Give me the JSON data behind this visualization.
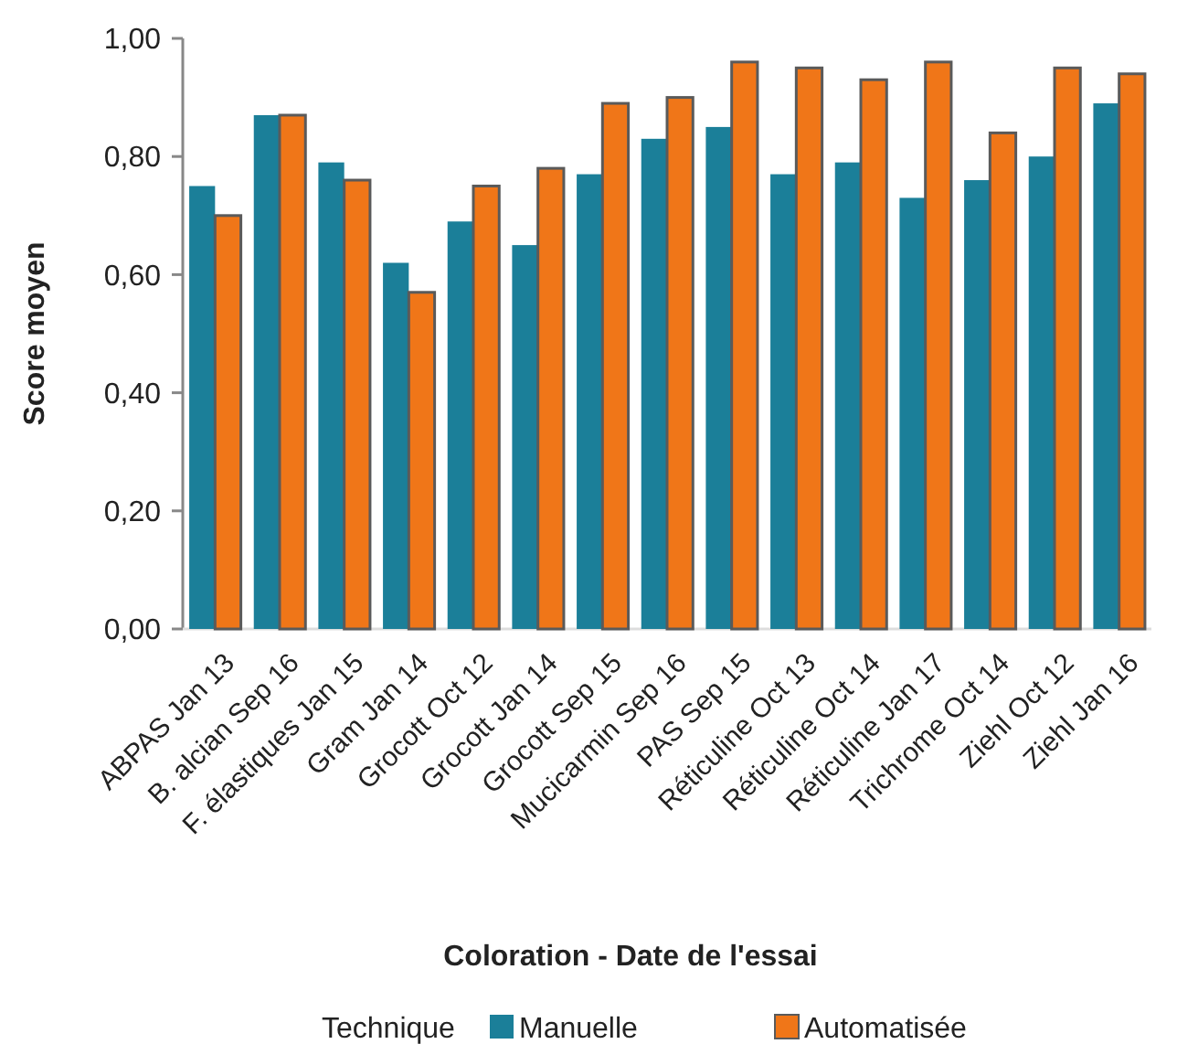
{
  "chart_data": {
    "type": "bar",
    "xlabel": "Coloration - Date de l'essai",
    "ylabel": "Score moyen",
    "legend_title": "Technique",
    "legend": "bottom",
    "grid": false,
    "categories": [
      "ABPAS Jan 13",
      "B. alcian Sep 16",
      "F. élastiques Jan 15",
      "Gram Jan 14",
      "Grocott Oct 12",
      "Grocott Jan 14",
      "Grocott Sep 15",
      "Mucicarmin Sep 16",
      "PAS Sep 15",
      "Réticuline Oct 13",
      "Réticuline Oct 14",
      "Réticuline Jan 17",
      "Trichrome Oct 14",
      "Ziehl Oct 12",
      "Ziehl Jan 16"
    ],
    "series": [
      {
        "name": "Manuelle",
        "color": "#1b7f99",
        "values": [
          0.75,
          0.87,
          0.79,
          0.62,
          0.69,
          0.65,
          0.77,
          0.83,
          0.85,
          0.77,
          0.79,
          0.73,
          0.76,
          0.8,
          0.89
        ]
      },
      {
        "name": "Automatisée",
        "color": "#f07618",
        "values": [
          0.7,
          0.87,
          0.76,
          0.57,
          0.75,
          0.78,
          0.89,
          0.9,
          0.96,
          0.95,
          0.93,
          0.96,
          0.84,
          0.95,
          0.94
        ]
      }
    ],
    "ylim": [
      0,
      1
    ],
    "yticks": [
      {
        "value": 0,
        "label": "0,00"
      },
      {
        "value": 0.2,
        "label": "0,20"
      },
      {
        "value": 0.4,
        "label": "0,40"
      },
      {
        "value": 0.6,
        "label": "0,60"
      },
      {
        "value": 0.8,
        "label": "0,80"
      },
      {
        "value": 1,
        "label": "1,00"
      }
    ]
  }
}
